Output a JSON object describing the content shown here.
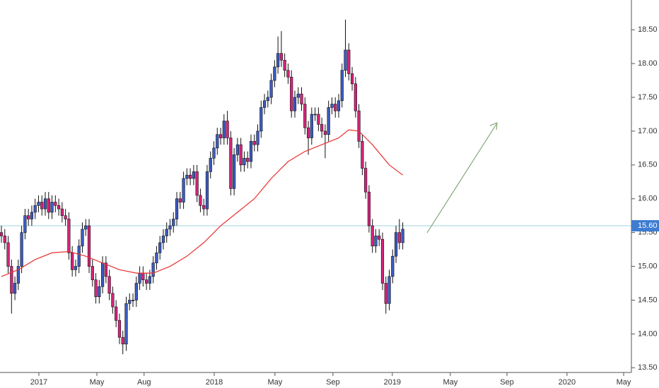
{
  "chart_data": {
    "type": "candlestick",
    "x": [
      0,
      1,
      2,
      3,
      4,
      5,
      6,
      7,
      8,
      9,
      10,
      11,
      12,
      13,
      14,
      15,
      16,
      17,
      18,
      19,
      20,
      21,
      22,
      23,
      24,
      25,
      26,
      27,
      28,
      29,
      30,
      31,
      32,
      33,
      34,
      35,
      36,
      37,
      38,
      39,
      40,
      41,
      42,
      43,
      44,
      45,
      46,
      47,
      48,
      49,
      50,
      51,
      52,
      53,
      54,
      55,
      56,
      57,
      58,
      59,
      60,
      61,
      62,
      63,
      64,
      65,
      66,
      67,
      68,
      69,
      70,
      71,
      72,
      73,
      74,
      75,
      76,
      77,
      78,
      79,
      80,
      81,
      82,
      83,
      84,
      85,
      86,
      87,
      88,
      89,
      90,
      91,
      92,
      93,
      94,
      95,
      96,
      97,
      98,
      99,
      100,
      101,
      102,
      103,
      104,
      105,
      106,
      107,
      108,
      109,
      110,
      111,
      112,
      113,
      114,
      115,
      116,
      117,
      118,
      119
    ],
    "open": [
      15.5,
      15.45,
      15.35,
      15.0,
      14.6,
      14.75,
      15.0,
      15.5,
      15.75,
      15.7,
      15.8,
      15.9,
      15.95,
      15.85,
      16.0,
      15.8,
      15.95,
      15.9,
      15.85,
      15.75,
      15.7,
      15.2,
      14.95,
      15.0,
      15.3,
      15.55,
      15.6,
      15.0,
      14.8,
      14.55,
      14.7,
      15.05,
      14.85,
      14.6,
      14.4,
      14.2,
      13.95,
      13.85,
      14.45,
      14.5,
      14.5,
      14.75,
      14.9,
      14.8,
      14.75,
      14.85,
      15.05,
      15.2,
      15.35,
      15.45,
      15.55,
      15.6,
      15.7,
      16.0,
      15.95,
      16.3,
      16.35,
      16.3,
      16.4,
      16.05,
      15.9,
      15.85,
      16.4,
      16.6,
      16.75,
      16.95,
      16.9,
      17.15,
      16.9,
      16.15,
      16.65,
      16.8,
      16.5,
      16.6,
      16.55,
      16.85,
      16.8,
      17.0,
      17.35,
      17.45,
      17.5,
      17.75,
      17.95,
      18.15,
      18.05,
      17.9,
      17.8,
      17.3,
      17.5,
      17.55,
      17.4,
      17.05,
      16.9,
      17.25,
      17.25,
      17.1,
      17.0,
      16.95,
      17.35,
      17.4,
      17.3,
      17.45,
      17.9,
      18.2,
      17.85,
      17.7,
      17.3,
      16.85,
      16.45,
      16.1,
      15.6,
      15.3,
      15.45,
      15.4,
      14.75,
      14.45,
      14.85,
      15.15,
      15.5,
      15.35
    ],
    "high": [
      15.6,
      15.55,
      15.45,
      15.1,
      14.85,
      15.1,
      15.6,
      15.85,
      15.85,
      15.9,
      16.0,
      16.05,
      16.05,
      16.1,
      16.1,
      16.05,
      16.05,
      16.0,
      15.95,
      15.85,
      15.8,
      15.3,
      15.1,
      15.4,
      15.65,
      15.7,
      15.7,
      15.1,
      14.9,
      14.8,
      15.15,
      15.15,
      14.95,
      14.7,
      14.5,
      14.3,
      14.05,
      14.55,
      14.6,
      14.6,
      14.85,
      15.0,
      15.0,
      14.9,
      14.95,
      15.15,
      15.3,
      15.45,
      15.55,
      15.65,
      15.7,
      15.8,
      16.1,
      16.1,
      16.4,
      16.45,
      16.45,
      16.5,
      16.5,
      16.15,
      16.0,
      16.5,
      16.7,
      16.85,
      17.05,
      17.05,
      17.25,
      17.3,
      17.0,
      16.75,
      16.9,
      16.9,
      16.7,
      16.7,
      16.95,
      16.95,
      17.1,
      17.45,
      17.55,
      17.6,
      17.85,
      18.05,
      18.4,
      18.48,
      18.15,
      18.0,
      17.9,
      17.6,
      17.65,
      17.65,
      17.5,
      17.15,
      17.35,
      17.35,
      17.35,
      17.2,
      17.1,
      17.45,
      17.5,
      17.5,
      17.55,
      18.0,
      18.65,
      18.3,
      17.95,
      17.8,
      17.4,
      16.95,
      16.55,
      16.2,
      15.7,
      15.55,
      15.55,
      15.5,
      14.85,
      14.95,
      15.25,
      15.6,
      15.7,
      15.65
    ],
    "low": [
      15.35,
      15.25,
      14.9,
      14.3,
      14.5,
      14.65,
      14.9,
      15.4,
      15.6,
      15.6,
      15.7,
      15.8,
      15.75,
      15.75,
      15.7,
      15.7,
      15.8,
      15.75,
      15.65,
      15.6,
      15.1,
      14.85,
      14.85,
      14.9,
      15.2,
      15.45,
      14.9,
      14.7,
      14.45,
      14.45,
      14.6,
      14.75,
      14.5,
      14.3,
      14.1,
      13.85,
      13.7,
      13.75,
      14.35,
      14.4,
      14.4,
      14.65,
      14.7,
      14.65,
      14.65,
      14.75,
      14.95,
      15.1,
      15.25,
      15.35,
      15.45,
      15.5,
      15.6,
      15.85,
      15.85,
      16.2,
      16.2,
      16.2,
      15.95,
      15.8,
      15.75,
      15.75,
      16.3,
      16.5,
      16.65,
      16.8,
      16.8,
      16.8,
      16.05,
      16.05,
      16.55,
      16.4,
      16.4,
      16.45,
      16.45,
      16.7,
      16.7,
      16.9,
      17.25,
      17.35,
      17.4,
      17.65,
      17.85,
      17.95,
      17.8,
      17.7,
      17.2,
      17.2,
      17.4,
      17.3,
      16.95,
      16.65,
      16.8,
      17.15,
      17.0,
      16.9,
      16.6,
      16.85,
      17.25,
      17.2,
      17.2,
      17.35,
      17.8,
      17.75,
      17.6,
      17.2,
      16.75,
      16.35,
      16.0,
      15.5,
      15.2,
      15.2,
      15.3,
      14.65,
      14.3,
      14.35,
      14.75,
      15.05,
      15.25,
      15.25
    ],
    "close": [
      15.45,
      15.35,
      15.0,
      14.6,
      14.75,
      15.0,
      15.5,
      15.75,
      15.7,
      15.8,
      15.9,
      15.95,
      15.85,
      16.0,
      15.8,
      15.95,
      15.9,
      15.85,
      15.75,
      15.7,
      15.2,
      14.95,
      15.0,
      15.3,
      15.55,
      15.6,
      15.0,
      14.8,
      14.55,
      14.7,
      15.05,
      14.85,
      14.6,
      14.4,
      14.2,
      13.95,
      13.85,
      14.45,
      14.5,
      14.5,
      14.75,
      14.9,
      14.8,
      14.75,
      14.85,
      15.05,
      15.2,
      15.35,
      15.45,
      15.55,
      15.6,
      15.7,
      16.0,
      15.95,
      16.3,
      16.35,
      16.3,
      16.4,
      16.05,
      15.9,
      15.85,
      16.4,
      16.6,
      16.75,
      16.95,
      16.9,
      17.15,
      16.9,
      16.15,
      16.65,
      16.8,
      16.5,
      16.6,
      16.55,
      16.85,
      16.8,
      17.0,
      17.35,
      17.45,
      17.5,
      17.75,
      17.95,
      18.15,
      18.05,
      17.9,
      17.8,
      17.3,
      17.5,
      17.55,
      17.4,
      17.05,
      16.9,
      17.25,
      17.25,
      17.1,
      17.0,
      16.95,
      17.35,
      17.4,
      17.3,
      17.45,
      17.9,
      18.2,
      17.85,
      17.7,
      17.3,
      16.85,
      16.45,
      16.1,
      15.6,
      15.3,
      15.45,
      15.4,
      14.75,
      14.45,
      14.85,
      15.15,
      15.5,
      15.35,
      15.55
    ],
    "up_color": "#3c5cc4",
    "down_color": "#d8237c",
    "moving_average": {
      "color": "#e8312f",
      "x": [
        0,
        5,
        10,
        15,
        20,
        25,
        30,
        35,
        40,
        45,
        50,
        55,
        60,
        65,
        70,
        75,
        80,
        85,
        90,
        95,
        100,
        103,
        106,
        110,
        115,
        119
      ],
      "values": [
        14.85,
        14.95,
        15.1,
        15.2,
        15.22,
        15.15,
        15.05,
        14.95,
        14.9,
        14.9,
        15.0,
        15.15,
        15.35,
        15.6,
        15.8,
        16.0,
        16.3,
        16.55,
        16.7,
        16.8,
        16.9,
        17.02,
        17.0,
        16.8,
        16.5,
        16.35
      ]
    },
    "last_price": {
      "value": 15.6,
      "label": "15.60"
    },
    "xlim": [
      -0.42,
      186.8
    ],
    "ylim": [
      13.43,
      18.94
    ],
    "xticks": [
      {
        "value": 11.1,
        "label": "2017"
      },
      {
        "value": 28.3,
        "label": "May"
      },
      {
        "value": 42.3,
        "label": "Aug"
      },
      {
        "value": 63.1,
        "label": "2018"
      },
      {
        "value": 81.1,
        "label": "May"
      },
      {
        "value": 98.3,
        "label": "Sep"
      },
      {
        "value": 115.9,
        "label": "2019"
      },
      {
        "value": 133.1,
        "label": "May"
      },
      {
        "value": 149.9,
        "label": "Sep"
      },
      {
        "value": 167.7,
        "label": "2020"
      },
      {
        "value": 184.5,
        "label": "May"
      }
    ],
    "yticks": [
      {
        "value": 13.5,
        "label": "13.50"
      },
      {
        "value": 14,
        "label": "14.00"
      },
      {
        "value": 14.5,
        "label": "14.50"
      },
      {
        "value": 15,
        "label": "15.00"
      },
      {
        "value": 15.5,
        "label": "15.50"
      },
      {
        "value": 16,
        "label": "16.00"
      },
      {
        "value": 16.5,
        "label": "16.50"
      },
      {
        "value": 17,
        "label": "17.00"
      },
      {
        "value": 17.5,
        "label": "17.50"
      },
      {
        "value": 18,
        "label": "18.00"
      },
      {
        "value": 18.5,
        "label": "18.50"
      }
    ]
  }
}
